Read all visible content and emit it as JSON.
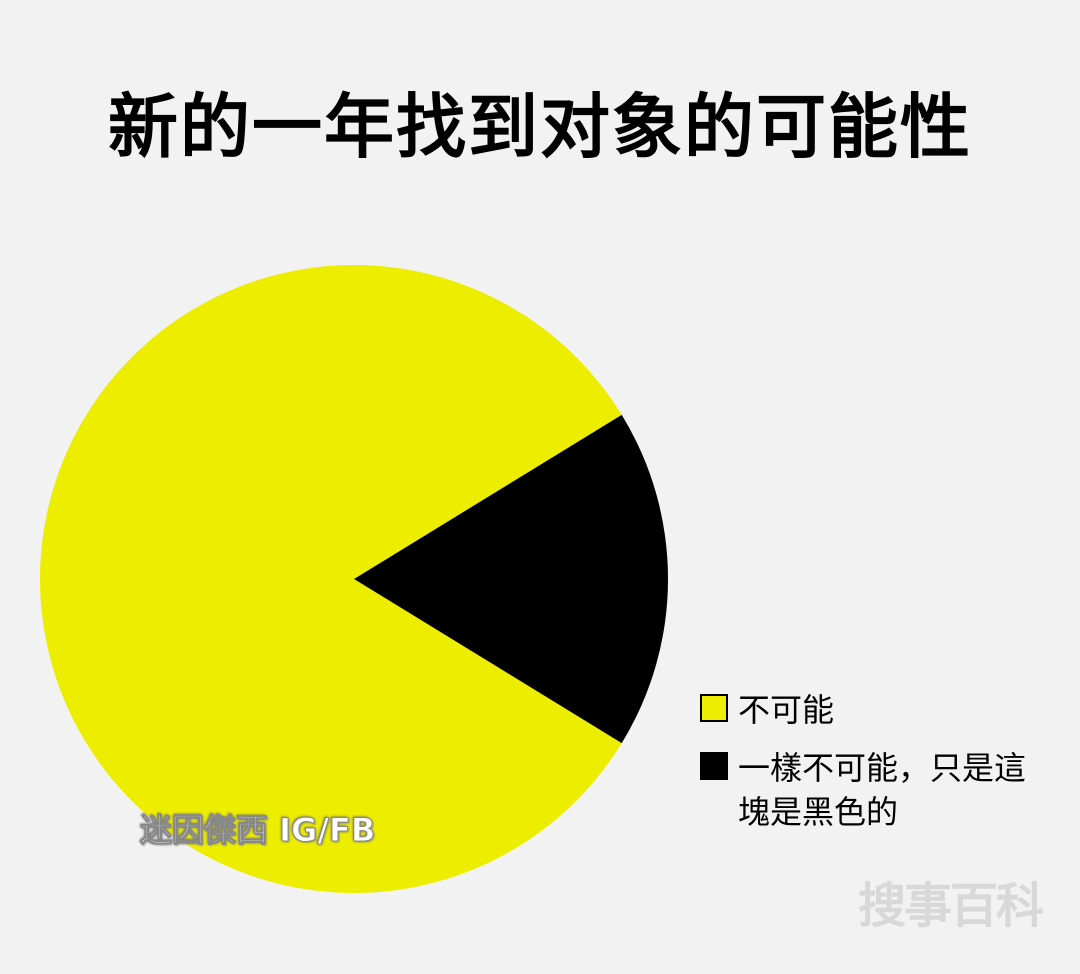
{
  "chart_data": {
    "type": "pie",
    "title": "新的一年找到对象的可能性",
    "slices": [
      {
        "label": "不可能",
        "value": 82.5,
        "color": "#eded00"
      },
      {
        "label": "一樣不可能，只是這塊是黑色的",
        "value": 17.5,
        "color": "#000000"
      }
    ],
    "legend": "right-bottom"
  },
  "watermark": {
    "text": "迷因傑西 IG/FB"
  },
  "site_mark": {
    "text": "搜事百科"
  }
}
